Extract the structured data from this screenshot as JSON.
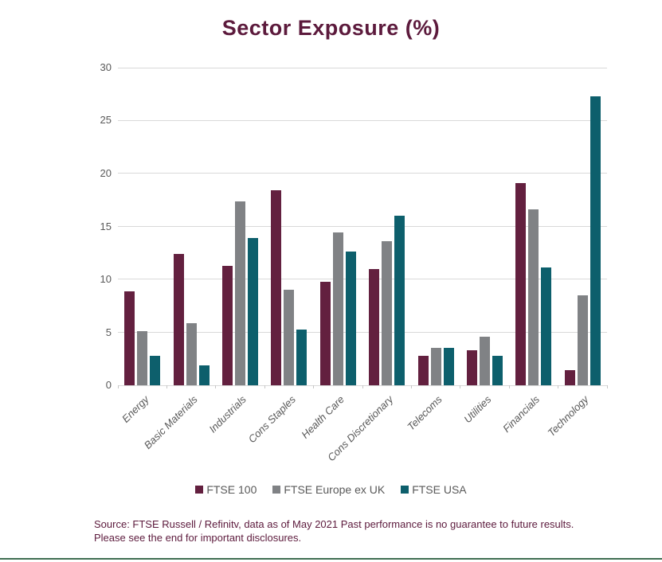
{
  "chart_data": {
    "type": "bar",
    "title": "Sector Exposure (%)",
    "title_color": "#5c1a3c",
    "categories": [
      "Energy",
      "Basic Materials",
      "Industrials",
      "Cons Staples",
      "Health Care",
      "Cons Discretionary",
      "Telecoms",
      "Utilities",
      "Financials",
      "Technology"
    ],
    "series": [
      {
        "name": "FTSE 100",
        "color": "#63203F",
        "values": [
          8.9,
          12.4,
          11.3,
          18.4,
          9.8,
          11.0,
          2.8,
          3.3,
          19.1,
          1.4
        ]
      },
      {
        "name": "FTSE Europe ex UK",
        "color": "#808285",
        "values": [
          5.1,
          5.9,
          17.4,
          9.0,
          14.4,
          13.6,
          3.5,
          4.6,
          16.6,
          8.5
        ]
      },
      {
        "name": "FTSE USA",
        "color": "#0D5F6C",
        "values": [
          2.8,
          1.9,
          13.9,
          5.3,
          12.6,
          16.0,
          3.5,
          2.8,
          11.1,
          27.3
        ]
      }
    ],
    "xlabel": "",
    "ylabel": "",
    "yticks": [
      0,
      5,
      10,
      15,
      20,
      25,
      30
    ],
    "ylim": [
      0,
      30
    ],
    "grid": true,
    "legend_position": "bottom",
    "axis_label_color": "#595959",
    "gridline_color": "#d9d9d9"
  },
  "footer": {
    "line1": "Source: FTSE Russell / Refinitv, data as of May 2021 Past performance is no guarantee to future results.",
    "line2": "Please see the end for important disclosures."
  },
  "page": {
    "bottom_rule_color": "#3f6e52"
  }
}
